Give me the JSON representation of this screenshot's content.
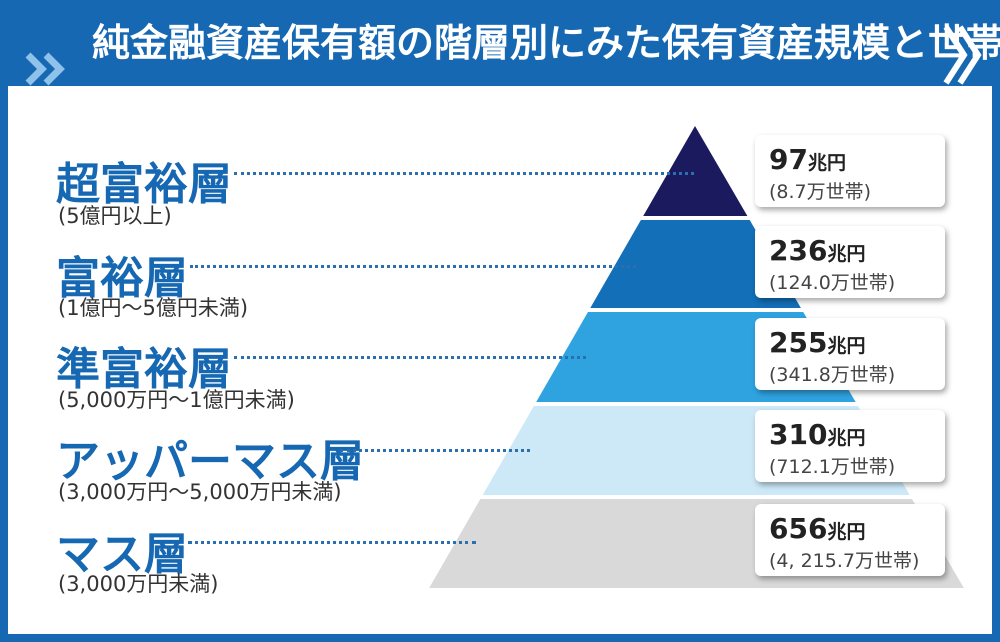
{
  "title": "純金融資産保有額の階層別にみた保有資産規模と世帯数",
  "icons": {
    "left": "double-chevron-right-icon",
    "right": "chevron-right-icon"
  },
  "colors": {
    "frame": "#1668b3",
    "tier1": "#1b1a5e",
    "tier2": "#126fb8",
    "tier3": "#2fa3e0",
    "tier4": "#cde9f8",
    "tier5": "#d9d9d9"
  },
  "chart_data": {
    "type": "pyramid",
    "tiers": [
      {
        "name": "超富裕層",
        "range": "(5億円以上)",
        "amount": "97",
        "unit": "兆円",
        "households": "(8.7万世帯)",
        "amount_trillion_yen": 97,
        "households_10k": 8.7
      },
      {
        "name": "富裕層",
        "range": "(1億円〜5億円未満)",
        "amount": "236",
        "unit": "兆円",
        "households": "(124.0万世帯)",
        "amount_trillion_yen": 236,
        "households_10k": 124.0
      },
      {
        "name": "準富裕層",
        "range": "(5,000万円〜1億円未満)",
        "amount": "255",
        "unit": "兆円",
        "households": "(341.8万世帯)",
        "amount_trillion_yen": 255,
        "households_10k": 341.8
      },
      {
        "name": "アッパーマス層",
        "range": "(3,000万円〜5,000万円未満)",
        "amount": "310",
        "unit": "兆円",
        "households": "(712.1万世帯)",
        "amount_trillion_yen": 310,
        "households_10k": 712.1
      },
      {
        "name": "マス層",
        "range": "(3,000万円未満)",
        "amount": "656",
        "unit": "兆円",
        "households": "(4, 215.7万世帯)",
        "amount_trillion_yen": 656,
        "households_10k": 4215.7
      }
    ]
  }
}
